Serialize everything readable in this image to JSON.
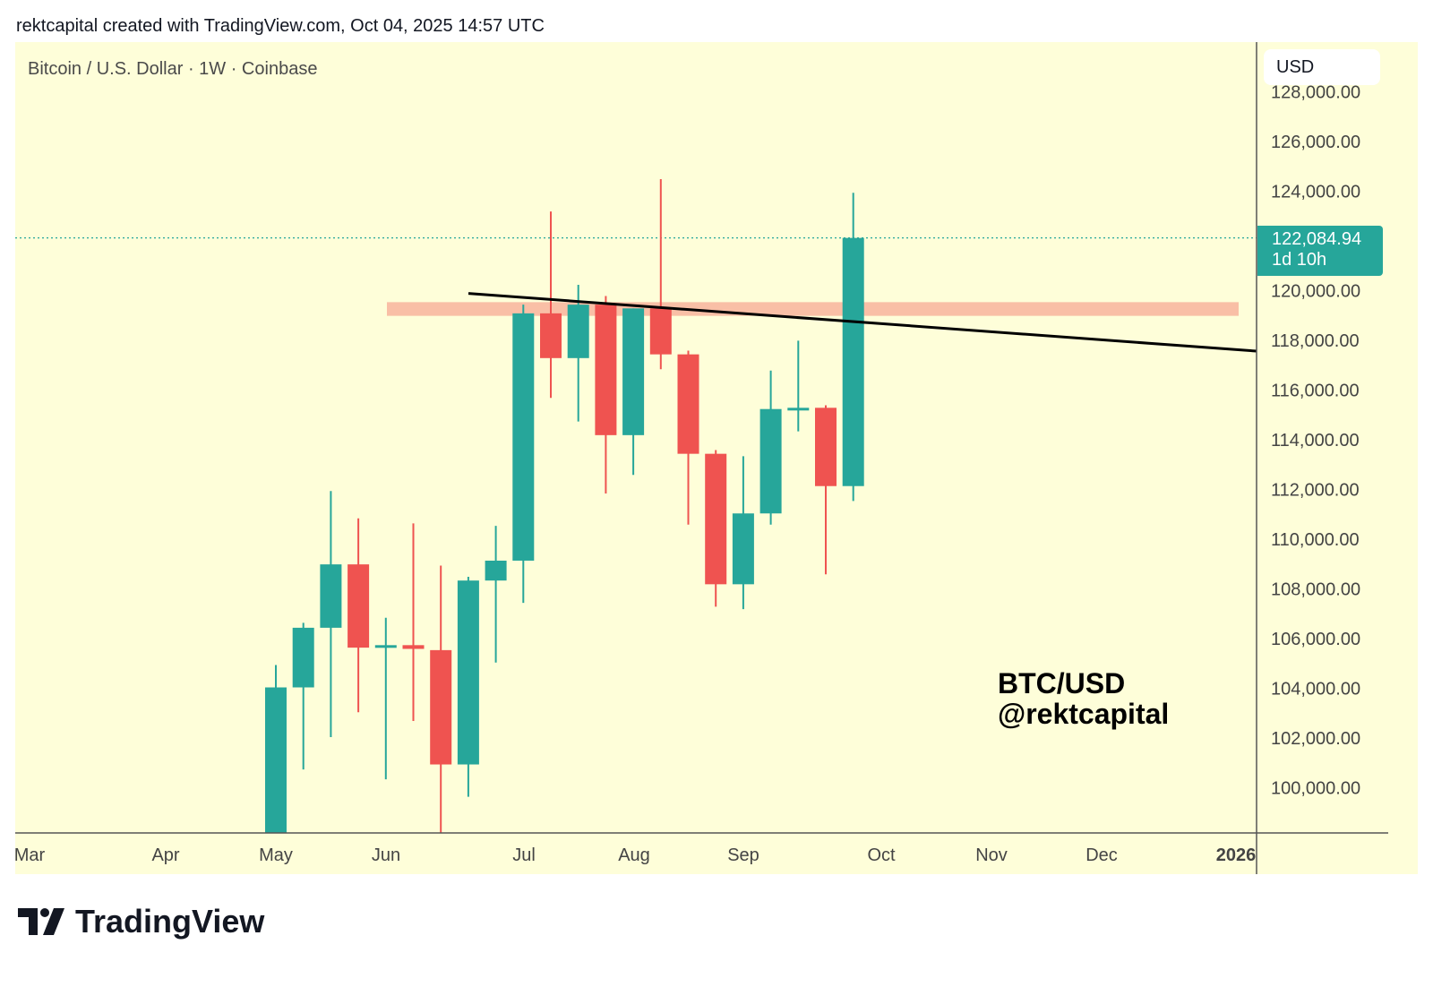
{
  "credit": "rektcapital created with TradingView.com, Oct 04, 2025 14:57 UTC",
  "brand": "TradingView",
  "chart_data": {
    "type": "candlestick",
    "title": "Bitcoin / U.S. Dollar · 1W · Coinbase",
    "currency": "USD",
    "last_price": "122,084.94",
    "countdown": "1d 10h",
    "annotation": [
      "BTC/USD",
      "@rektcapital"
    ],
    "ylim": [
      98000,
      128600
    ],
    "y_ticks": [
      "128,000.00",
      "126,000.00",
      "124,000.00",
      "122,000.00",
      "120,000.00",
      "118,000.00",
      "116,000.00",
      "114,000.00",
      "112,000.00",
      "110,000.00",
      "108,000.00",
      "106,000.00",
      "104,000.00",
      "102,000.00",
      "100,000.00"
    ],
    "y_tick_values": [
      128000,
      126000,
      124000,
      122000,
      120000,
      118000,
      116000,
      114000,
      112000,
      110000,
      108000,
      106000,
      104000,
      102000,
      100000
    ],
    "x_ticks": [
      "Mar",
      "Apr",
      "May",
      "Jun",
      "Jul",
      "Aug",
      "Sep",
      "Oct",
      "Nov",
      "Dec",
      "2026"
    ],
    "colors": {
      "up": "#26a69a",
      "down": "#ef5350",
      "background": "#fefed9",
      "zone": "#f9bfa6",
      "trendline": "#000000"
    },
    "candles": [
      {
        "week": "2025-05-05",
        "o": 96500,
        "h": 104900,
        "l": 96000,
        "c": 104000
      },
      {
        "week": "2025-05-12",
        "o": 104000,
        "h": 106600,
        "l": 100700,
        "c": 106400
      },
      {
        "week": "2025-05-19",
        "o": 106400,
        "h": 111900,
        "l": 102000,
        "c": 108950
      },
      {
        "week": "2025-05-26",
        "o": 108950,
        "h": 110800,
        "l": 103000,
        "c": 105600
      },
      {
        "week": "2025-06-02",
        "o": 105600,
        "h": 106800,
        "l": 100300,
        "c": 105700
      },
      {
        "week": "2025-06-09",
        "o": 105700,
        "h": 110600,
        "l": 102650,
        "c": 105550
      },
      {
        "week": "2025-06-16",
        "o": 105500,
        "h": 108900,
        "l": 98100,
        "c": 100900
      },
      {
        "week": "2025-06-23",
        "o": 100900,
        "h": 108450,
        "l": 99600,
        "c": 108300
      },
      {
        "week": "2025-06-30",
        "o": 108300,
        "h": 110500,
        "l": 105000,
        "c": 109100
      },
      {
        "week": "2025-07-07",
        "o": 109100,
        "h": 119400,
        "l": 107400,
        "c": 119050
      },
      {
        "week": "2025-07-14",
        "o": 119050,
        "h": 123150,
        "l": 115650,
        "c": 117250
      },
      {
        "week": "2025-07-21",
        "o": 117250,
        "h": 120200,
        "l": 114700,
        "c": 119400
      },
      {
        "week": "2025-07-28",
        "o": 119400,
        "h": 119750,
        "l": 111800,
        "c": 114150
      },
      {
        "week": "2025-08-04",
        "o": 114150,
        "h": 119250,
        "l": 112550,
        "c": 119250
      },
      {
        "week": "2025-08-11",
        "o": 119250,
        "h": 124450,
        "l": 116800,
        "c": 117400
      },
      {
        "week": "2025-08-18",
        "o": 117400,
        "h": 117550,
        "l": 110550,
        "c": 113400
      },
      {
        "week": "2025-08-25",
        "o": 113400,
        "h": 113550,
        "l": 107250,
        "c": 108150
      },
      {
        "week": "2025-09-01",
        "o": 108150,
        "h": 113300,
        "l": 107150,
        "c": 111000
      },
      {
        "week": "2025-09-08",
        "o": 111000,
        "h": 116750,
        "l": 110550,
        "c": 115200
      },
      {
        "week": "2025-09-15",
        "o": 115200,
        "h": 117950,
        "l": 114300,
        "c": 115250
      },
      {
        "week": "2025-09-22",
        "o": 115250,
        "h": 115350,
        "l": 108550,
        "c": 112100
      },
      {
        "week": "2025-09-29",
        "o": 112100,
        "h": 123900,
        "l": 111500,
        "c": 122084.94
      }
    ],
    "resistance_zone": {
      "low": 118950,
      "high": 119500
    },
    "trendline": {
      "start_price": 119850,
      "end_price": 117530
    }
  }
}
